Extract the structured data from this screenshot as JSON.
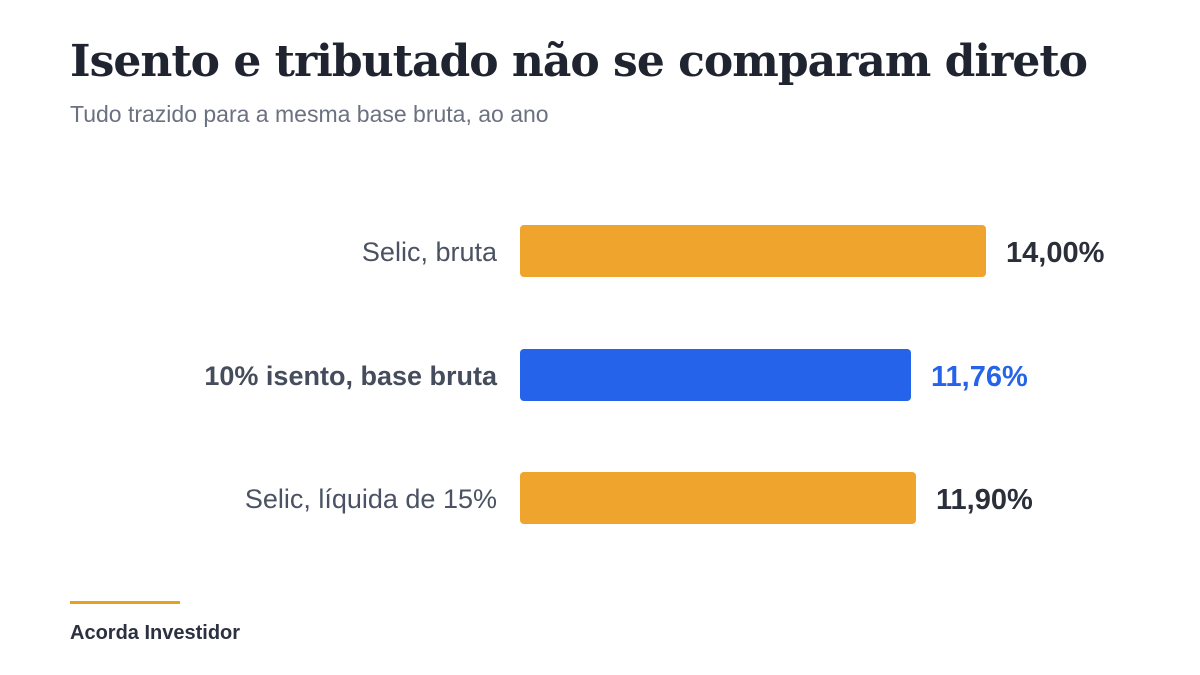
{
  "chart_data": {
    "type": "bar",
    "orientation": "horizontal",
    "title": "Isento e tributado não se comparam direto",
    "subtitle": "Tudo trazido para a mesma base bruta, ao ano",
    "categories": [
      "Selic, bruta",
      "10% isento, base bruta",
      "Selic, líquida de 15%"
    ],
    "values": [
      14.0,
      11.76,
      11.9
    ],
    "value_labels": [
      "14,00%",
      "11,76%",
      "11,90%"
    ],
    "highlighted": [
      false,
      true,
      false
    ],
    "unit": "%",
    "xlim": [
      0,
      14
    ],
    "grid": false,
    "legend": "none"
  },
  "colors": {
    "bar": "#efa42e",
    "highlight": "#2563eb",
    "value_text": "#2b2f3a",
    "accent": "#e5a21c"
  },
  "footer": {
    "source": "Acorda Investidor"
  }
}
